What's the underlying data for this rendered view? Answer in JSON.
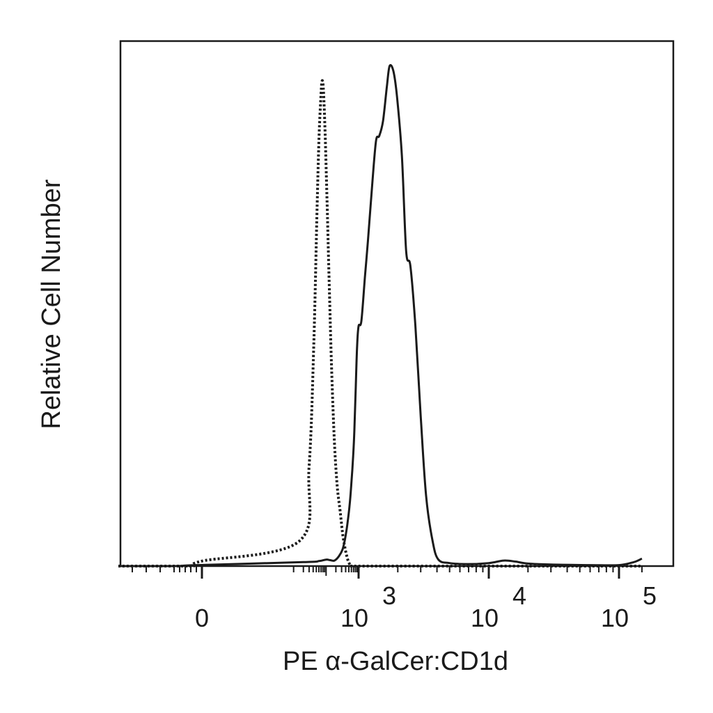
{
  "chart_data": {
    "type": "line",
    "title": "",
    "xlabel": "PE α-GalCer:CD1d",
    "ylabel": "Relative Cell Number",
    "x_scale": "biexponential (logicle)",
    "xlim": [
      -300,
      150000
    ],
    "ylim": [
      0,
      105
    ],
    "grid": false,
    "legend": "none",
    "y_ticks_labeled": false,
    "x_tick_labels": [
      {
        "value": 0,
        "base": "0",
        "exp": ""
      },
      {
        "value": 1000,
        "base": "10",
        "exp": "3"
      },
      {
        "value": 10000,
        "base": "10",
        "exp": "4"
      },
      {
        "value": 100000,
        "base": "10",
        "exp": "5"
      }
    ],
    "series": [
      {
        "style": "dotted",
        "color": "#1a1a1a",
        "points": [
          [
            -300,
            0
          ],
          [
            -200,
            0
          ],
          [
            -100,
            0
          ],
          [
            -30,
            0
          ],
          [
            0,
            1
          ],
          [
            15,
            5
          ],
          [
            30,
            20
          ],
          [
            42,
            45
          ],
          [
            52,
            70
          ],
          [
            60,
            85
          ],
          [
            68,
            93
          ],
          [
            75,
            97
          ],
          [
            83,
            95
          ],
          [
            95,
            85
          ],
          [
            110,
            70
          ],
          [
            130,
            52
          ],
          [
            150,
            38
          ],
          [
            180,
            25
          ],
          [
            220,
            16
          ],
          [
            270,
            11
          ],
          [
            330,
            6
          ],
          [
            400,
            3
          ],
          [
            480,
            1
          ],
          [
            600,
            0
          ],
          [
            800,
            0
          ],
          [
            2000,
            0
          ],
          [
            10000,
            0
          ],
          [
            100000,
            0
          ],
          [
            150000,
            0
          ]
        ]
      },
      {
        "style": "solid",
        "color": "#1a1a1a",
        "points": [
          [
            -300,
            0
          ],
          [
            -100,
            0
          ],
          [
            -20,
            0.2
          ],
          [
            20,
            0.8
          ],
          [
            60,
            1.0
          ],
          [
            100,
            1.3
          ],
          [
            130,
            1.2
          ],
          [
            180,
            1.1
          ],
          [
            250,
            2.0
          ],
          [
            320,
            3.3
          ],
          [
            380,
            5.3
          ],
          [
            450,
            8.3
          ],
          [
            530,
            12.2
          ],
          [
            600,
            16.5
          ],
          [
            680,
            22
          ],
          [
            740,
            27
          ],
          [
            820,
            36
          ],
          [
            900,
            44
          ],
          [
            1000,
            48
          ],
          [
            1050,
            49
          ],
          [
            1120,
            58
          ],
          [
            1180,
            65
          ],
          [
            1270,
            76
          ],
          [
            1360,
            85
          ],
          [
            1440,
            86
          ],
          [
            1540,
            89
          ],
          [
            1650,
            96
          ],
          [
            1730,
            100
          ],
          [
            1850,
            99
          ],
          [
            1970,
            94
          ],
          [
            2150,
            82
          ],
          [
            2320,
            63
          ],
          [
            2500,
            60
          ],
          [
            2730,
            48
          ],
          [
            3000,
            30
          ],
          [
            3300,
            14
          ],
          [
            3700,
            5
          ],
          [
            4100,
            1.3
          ],
          [
            5000,
            0.6
          ],
          [
            7000,
            0.4
          ],
          [
            10000,
            0.6
          ],
          [
            13000,
            1.1
          ],
          [
            16000,
            0.9
          ],
          [
            20000,
            0.5
          ],
          [
            30000,
            0.3
          ],
          [
            60000,
            0.2
          ],
          [
            100000,
            0.2
          ],
          [
            130000,
            0.8
          ],
          [
            150000,
            1.5
          ]
        ]
      }
    ]
  }
}
